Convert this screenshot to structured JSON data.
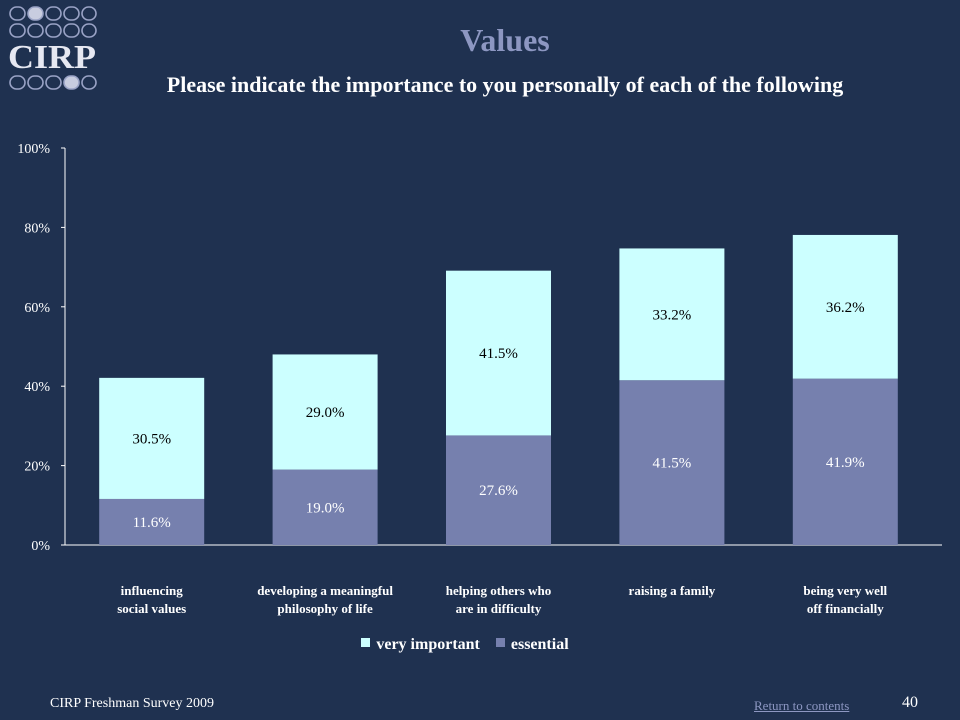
{
  "header": {
    "logo_text": "CIRP",
    "title": "Values",
    "subtitle": "Please indicate the importance to you personally of each of the following"
  },
  "footer": {
    "survey": "CIRP Freshman Survey 2009",
    "return_link": "Return to contents",
    "page_number": "40"
  },
  "colors": {
    "background": "#1f3150",
    "very_important": "#ccffff",
    "essential": "#7680ae",
    "title": "#8d97c2"
  },
  "chart_data": {
    "type": "bar",
    "stacked": true,
    "categories": [
      [
        "influencing",
        "social values"
      ],
      [
        "developing a meaningful",
        "philosophy of life"
      ],
      [
        "helping others who",
        "are in difficulty"
      ],
      [
        "raising a family"
      ],
      [
        "being very well",
        "off financially"
      ]
    ],
    "series": [
      {
        "name": "essential",
        "values": [
          11.6,
          19.0,
          27.6,
          41.5,
          41.9
        ],
        "labels": [
          "11.6%",
          "19.0%",
          "27.6%",
          "41.5%",
          "41.9%"
        ]
      },
      {
        "name": "very important",
        "values": [
          30.5,
          29.0,
          41.5,
          33.2,
          36.2
        ],
        "labels": [
          "30.5%",
          "29.0%",
          "41.5%",
          "33.2%",
          "36.2%"
        ]
      }
    ],
    "legend_order": [
      "very important",
      "essential"
    ],
    "y_ticks": [
      "0%",
      "20%",
      "40%",
      "60%",
      "80%",
      "100%"
    ],
    "ylim": [
      0,
      100
    ],
    "grid": false,
    "legend_position": "bottom"
  }
}
